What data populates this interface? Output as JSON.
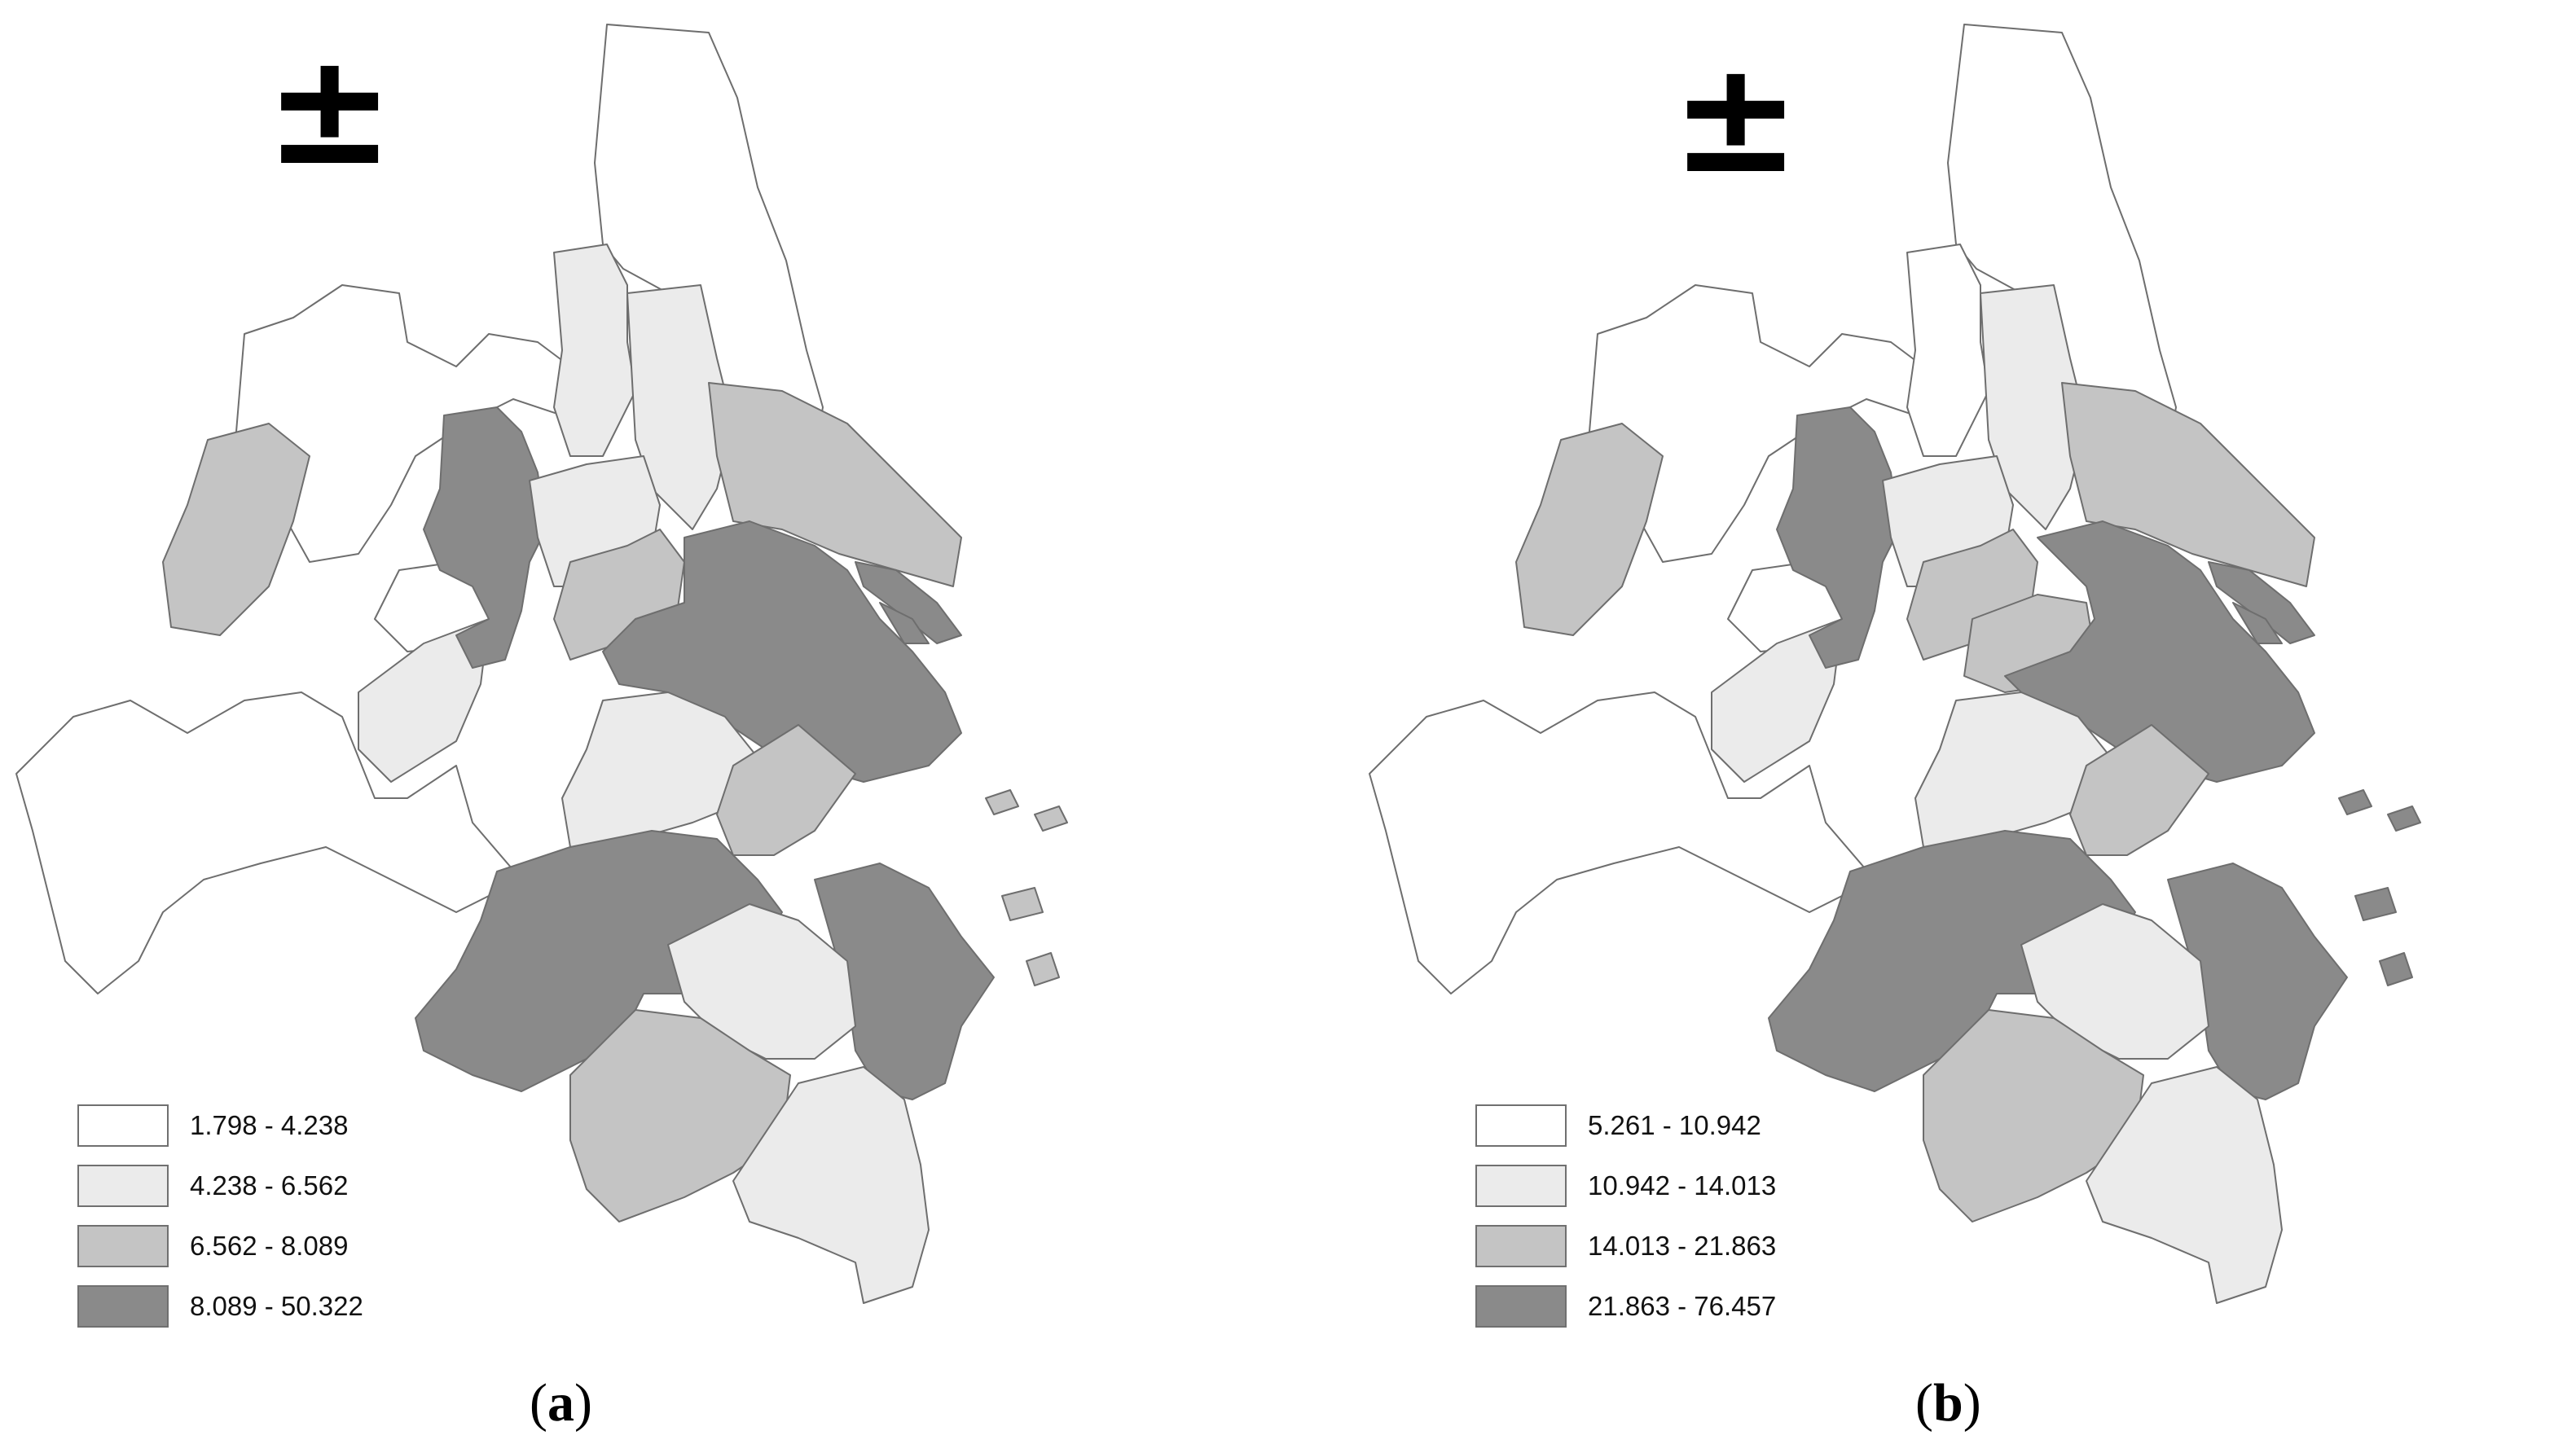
{
  "colors": {
    "class1": "#ffffff",
    "class2": "#ebebeb",
    "class3": "#c4c4c4",
    "class4": "#8a8a8a",
    "outline": "#6e6e6e"
  },
  "icons": {
    "north_arrow": "north-arrow-icon"
  },
  "panels": [
    {
      "north_symbol": "±",
      "caption_open": "(",
      "caption_letter": "a",
      "caption_close": ")",
      "legend": [
        {
          "label": "1.798 - 4.238",
          "class": "class1"
        },
        {
          "label": "4.238 - 6.562",
          "class": "class2"
        },
        {
          "label": "6.562 - 8.089",
          "class": "class3"
        },
        {
          "label": "8.089 - 50.322",
          "class": "class4"
        }
      ]
    },
    {
      "north_symbol": "±",
      "caption_open": "(",
      "caption_letter": "b",
      "caption_close": ")",
      "legend": [
        {
          "label": "5.261 - 10.942",
          "class": "class1"
        },
        {
          "label": "10.942 - 14.013",
          "class": "class2"
        },
        {
          "label": "14.013 - 21.863",
          "class": "class3"
        },
        {
          "label": "21.863 - 76.457",
          "class": "class4"
        }
      ]
    }
  ]
}
